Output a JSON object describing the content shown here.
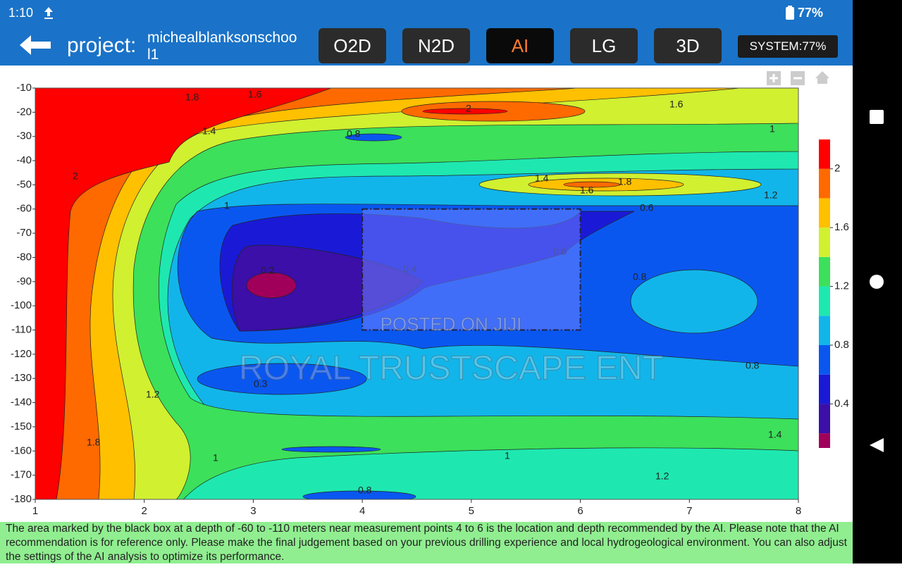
{
  "status_bar": {
    "time": "1:10",
    "battery": "77%"
  },
  "header": {
    "project_label": "project:",
    "project_name": "michealblanksonschool1",
    "tabs": [
      "O2D",
      "N2D",
      "AI",
      "LG",
      "3D"
    ],
    "active_tab": "AI",
    "system": "SYSTEM:77%"
  },
  "chart_data": {
    "type": "contour",
    "xlim": [
      1,
      8
    ],
    "xticks": [
      1,
      2,
      3,
      4,
      5,
      6,
      7,
      8
    ],
    "ylim": [
      -180,
      -10
    ],
    "yticks": [
      -10,
      -20,
      -30,
      -40,
      -50,
      -60,
      -70,
      -80,
      -90,
      -100,
      -110,
      -120,
      -130,
      -140,
      -150,
      -160,
      -170,
      -180
    ],
    "grid": false,
    "colorbar": {
      "levels": [
        0.1,
        0.2,
        0.4,
        0.6,
        0.8,
        1.0,
        1.2,
        1.4,
        1.6,
        1.8,
        2.0,
        2.2
      ],
      "colors": [
        "#a0005a",
        "#3b0fa8",
        "#1a1ad6",
        "#0a57f0",
        "#12b5ea",
        "#1ee8b0",
        "#3ce05a",
        "#d0f030",
        "#ffc000",
        "#ff6a00",
        "#ff0000"
      ],
      "ticks": [
        0.4,
        0.8,
        1.2,
        1.6,
        2
      ]
    },
    "contour_labels": [
      1.8,
      1.6,
      2,
      1.6,
      1.4,
      0.8,
      1,
      2,
      1.4,
      1.8,
      1.6,
      1.2,
      1,
      0.6,
      0.6,
      0.2,
      0.4,
      0.8,
      0.8,
      0.3,
      1.2,
      1.8,
      1.4,
      1,
      1,
      1.2,
      0.8
    ],
    "ai_box": {
      "x": [
        4,
        6
      ],
      "y": [
        -60,
        -110
      ]
    }
  },
  "watermarks": [
    "POSTED ON JIJI",
    "ROYAL TRUSTSCAPE ENT"
  ],
  "note": "The area marked by the black box at a depth of -60 to -110 meters near measurement points 4 to 6 is the location and depth recommended by the AI. Please note that the AI recommendation is for reference only. Please make the final judgement based on your previous drilling experience and local hydrogeological environment. You can also adjust the settings of the AI analysis to optimize its performance."
}
